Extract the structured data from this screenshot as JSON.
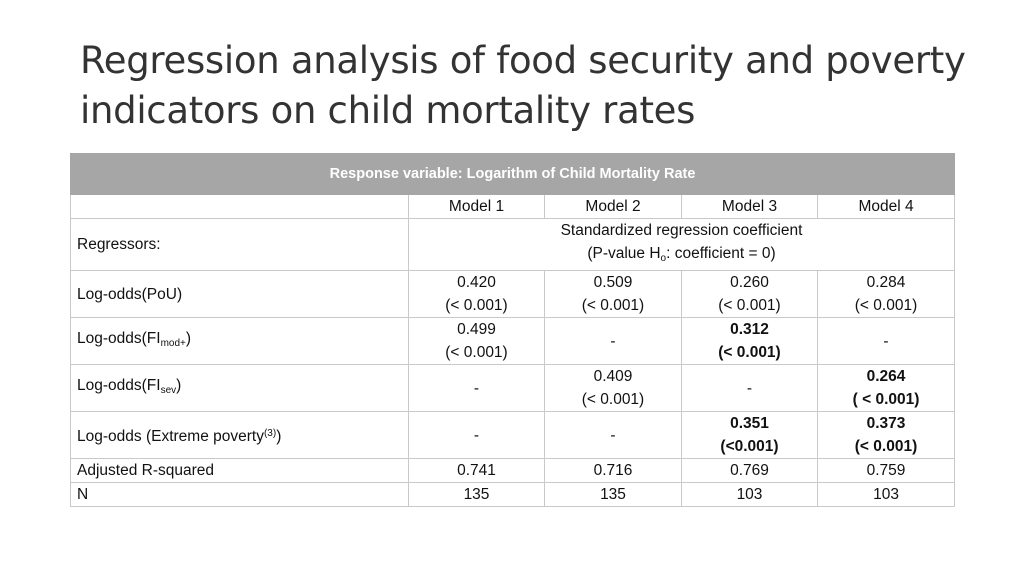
{
  "title": "Regression analysis of food security and poverty indicators on child mortality rates",
  "table": {
    "response_header": "Response variable: Logarithm of Child Mortality Rate",
    "models": [
      "Model 1",
      "Model 2",
      "Model 3",
      "Model 4"
    ],
    "regressors_label": "Regressors:",
    "coef_label_line1": "Standardized regression coefficient",
    "coef_label_line2_pre": "(P-value H",
    "coef_label_line2_sub": "o",
    "coef_label_line2_post": ": coefficient = 0)",
    "rows": [
      {
        "label": "Log-odds(PoU)",
        "cells": [
          {
            "value": "0.420",
            "p": "(< 0.001)"
          },
          {
            "value": "0.509",
            "p": "(< 0.001)"
          },
          {
            "value": "0.260",
            "p": "(< 0.001)"
          },
          {
            "value": "0.284",
            "p": "(< 0.001)"
          }
        ]
      },
      {
        "label_pre": "Log-odds(FI",
        "label_sub": "mod+",
        "label_post": ")",
        "cells": [
          {
            "value": "0.499",
            "p": "(< 0.001)"
          },
          {
            "value": "-"
          },
          {
            "value": "0.312",
            "p": "(< 0.001)"
          },
          {
            "value": "-"
          }
        ]
      },
      {
        "label_pre": "Log-odds(FI",
        "label_sub": "sev",
        "label_post": ")",
        "cells": [
          {
            "value": "-"
          },
          {
            "value": "0.409",
            "p": "(< 0.001)"
          },
          {
            "value": "-"
          },
          {
            "value": "0.264",
            "p": "( < 0.001)"
          }
        ]
      },
      {
        "label_pre": "Log-odds (Extreme poverty",
        "label_sup": "(3)",
        "label_post": ")",
        "cells": [
          {
            "value": "-"
          },
          {
            "value": "-"
          },
          {
            "value": "0.351",
            "p": "(<0.001)"
          },
          {
            "value": "0.373",
            "p": "(< 0.001)"
          }
        ]
      }
    ],
    "adj_r2_label": "Adjusted R-squared",
    "adj_r2": [
      "0.741",
      "0.716",
      "0.769",
      "0.759"
    ],
    "n_label": "N",
    "n": [
      "135",
      "135",
      "103",
      "103"
    ]
  }
}
